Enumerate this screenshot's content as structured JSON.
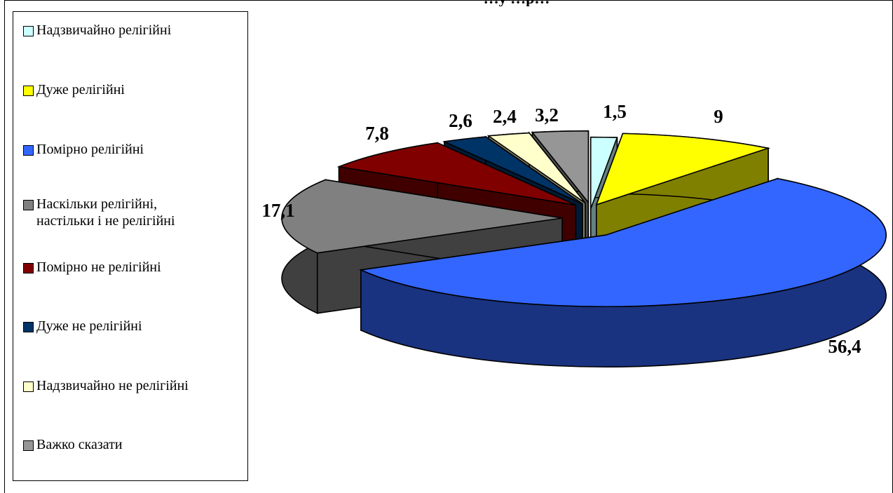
{
  "chart_data": {
    "type": "pie",
    "title": "…у …р…",
    "values": [
      1.5,
      9,
      56.4,
      17.1,
      7.8,
      2.6,
      2.4,
      3.2
    ],
    "value_labels": [
      "1,5",
      "9",
      "56,4",
      "17,1",
      "7,8",
      "2,6",
      "2,4",
      "3,2"
    ],
    "legend": [
      "Надзвичайно релігійні",
      "Дуже релігійні",
      "Помірно релігійні",
      "Наскільки релігійні, настільки і не релігійні",
      "Помірно не релігійні",
      "Дуже не релігійні",
      "Надзвичайно не релігійні",
      "Важко сказати"
    ],
    "legend_lines": [
      [
        "Надзвичайно релігійні"
      ],
      [
        "Дуже релігійні"
      ],
      [
        "Помірно релігійні"
      ],
      [
        "Наскільки релігійні,",
        "настільки і не релігійні"
      ],
      [
        "Помірно не релігійні"
      ],
      [
        "Дуже не релігійні"
      ],
      [
        "Надзвичайно не релігійні"
      ],
      [
        "Важко сказати"
      ]
    ],
    "colors": [
      "#ccffff",
      "#ffff00",
      "#3366ff",
      "#808080",
      "#800000",
      "#003366",
      "#ffffcc",
      "#969696"
    ],
    "side_colors": [
      "#668080",
      "#808000",
      "#1a3380",
      "#404040",
      "#400000",
      "#001a33",
      "#808066",
      "#4b4b4b"
    ],
    "legend_placement": "left",
    "style": "3d-exploded"
  }
}
